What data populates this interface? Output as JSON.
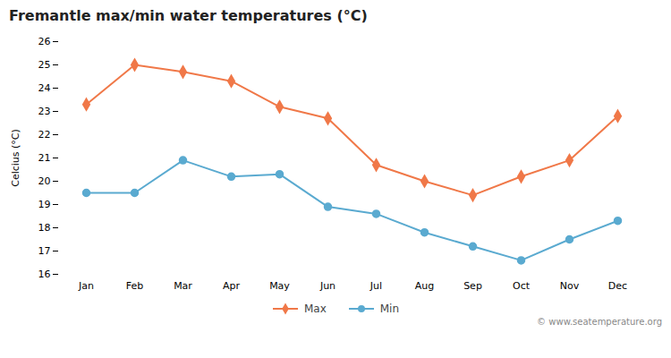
{
  "chart_data": {
    "type": "line",
    "title": "Fremantle max/min water temperatures (°C)",
    "ylabel": "Celcius (°C)",
    "categories": [
      "Jan",
      "Feb",
      "Mar",
      "Apr",
      "May",
      "Jun",
      "Jul",
      "Aug",
      "Sep",
      "Oct",
      "Nov",
      "Dec"
    ],
    "series": [
      {
        "name": "Max",
        "color": "#f07848",
        "marker": "diamond",
        "values": [
          23.3,
          25.0,
          24.7,
          24.3,
          23.2,
          22.7,
          20.7,
          20.0,
          19.4,
          20.2,
          20.9,
          22.8
        ]
      },
      {
        "name": "Min",
        "color": "#5aaad0",
        "marker": "circle",
        "values": [
          19.5,
          19.5,
          20.9,
          20.2,
          20.3,
          18.9,
          18.6,
          17.8,
          17.2,
          16.6,
          17.5,
          18.3
        ]
      }
    ],
    "ylim": [
      16,
      26
    ],
    "yticks": [
      16,
      17,
      18,
      19,
      20,
      21,
      22,
      23,
      24,
      25,
      26
    ],
    "grid": false,
    "legend": "bottom",
    "annotations": [
      "© www.seatemperature.org"
    ]
  }
}
